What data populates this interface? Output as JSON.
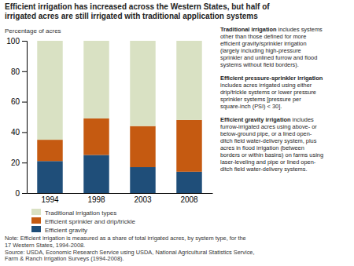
{
  "chart_data": {
    "type": "bar",
    "stacked": true,
    "title": [
      "Efficient irrigation has increased across the Western States, but half of",
      "irrigated acres are still irrigated with traditional application systems"
    ],
    "ylabel": "Percentage of acres",
    "categories": [
      "1994",
      "1998",
      "2003",
      "2008"
    ],
    "series": [
      {
        "name": "Efficient gravity",
        "color": "#1f4e79",
        "values": [
          21,
          25,
          17,
          14
        ]
      },
      {
        "name": "Efficient sprinkler and drip/trickle",
        "color": "#c55a11",
        "values": [
          14,
          24,
          27,
          34
        ]
      },
      {
        "name": "Traditional irrigation types",
        "color": "#d9e1c3",
        "values": [
          65,
          51,
          56,
          52
        ]
      }
    ],
    "ylim": [
      0,
      100
    ],
    "yticks": [
      0,
      20,
      40,
      60,
      80,
      100
    ],
    "grid": false,
    "legend": "bottom",
    "annotations": [
      {
        "title": "Traditional irrigation",
        "text": " includes systems\nother than those defined for more\nefficient gravity/sprinkler irrigation\n(largely including high-pressure\nsprinkler and unlined furrow and flood\nsystems without field borders)."
      },
      {
        "title": "Efficient pressure-sprinkler irrigation",
        "text": "\nincludes acres irrigated using either\ndrip/trickle systems or lower pressure\nsprinkler systems [pressure per\nsquare-inch (PSI) < 30]."
      },
      {
        "title": "Efficient gravity irrigation",
        "text": " includes\nfurrow-irrigated acres using above- or\nbelow-ground pipe, or a lined open-\nditch field water-delivery system, plus\nacres in flood irrigation (between\nborders or within basins) on farms using\nlaser-leveling and pipe or lined open-\nditch field water-delivery systems."
      }
    ],
    "notes": [
      "Note: Efficient irrigation is measured as a share of total irrigated acres, by system type, for the",
      "17 Western States, 1994-2008.",
      "Source: USDA, Economic Research Service using USDA, National Agricultural Statistics Service,",
      "Farm & Ranch Irrigation Surveys (1994-2008)."
    ]
  }
}
